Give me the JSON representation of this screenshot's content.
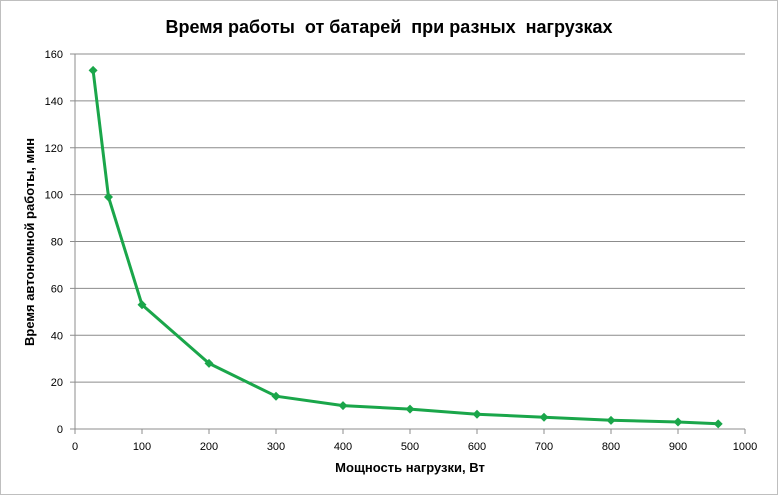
{
  "chart_data": {
    "type": "line",
    "title": "Время работы  от батарей  при разных  нагрузках",
    "xlabel": "Мощность нагрузки, Вт",
    "ylabel": "Время автономной работы, мин",
    "xlim": [
      0,
      1000
    ],
    "ylim": [
      0,
      160
    ],
    "x_ticks": [
      0,
      100,
      200,
      300,
      400,
      500,
      600,
      700,
      800,
      900,
      1000
    ],
    "y_ticks": [
      0,
      20,
      40,
      60,
      80,
      100,
      120,
      140,
      160
    ],
    "grid": "horizontal",
    "legend": "none",
    "series": [
      {
        "color": "#1aa64a",
        "marker": "diamond",
        "x": [
          27,
          50,
          100,
          200,
          300,
          400,
          500,
          600,
          700,
          800,
          900,
          960
        ],
        "y": [
          153,
          99,
          53,
          28,
          14,
          10,
          8.5,
          6.3,
          5,
          3.7,
          3,
          2.2
        ]
      }
    ]
  }
}
